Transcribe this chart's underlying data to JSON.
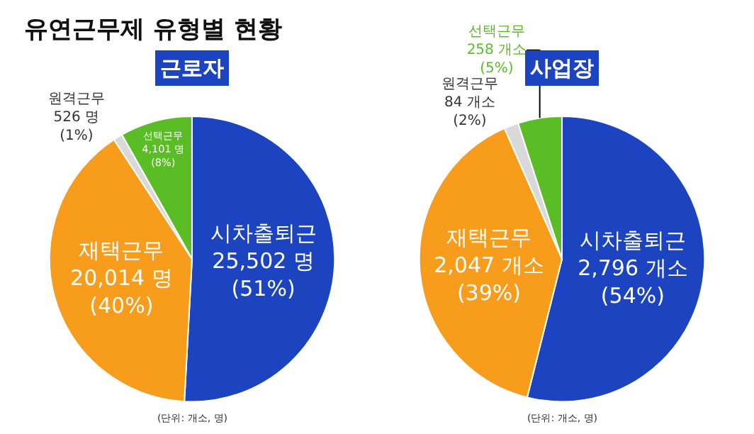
{
  "chart_data": [
    {
      "type": "other",
      "title": "유연근무제 유형별 현황"
    },
    {
      "type": "pie",
      "title": "근로자",
      "categories": [
        "시차출퇴근",
        "재택근무",
        "원격근무",
        "선택근무"
      ],
      "values": [
        25502,
        20014,
        526,
        4101
      ],
      "colors": [
        "#1c43c0",
        "#f89c1c",
        "#d9d9d9",
        "#5bbd25"
      ],
      "value_labels": [
        "25,502 명\n(51%)",
        "20,014 명\n(40%)",
        "526 명\n(1%)",
        "4,101 명\n(8%)"
      ],
      "annotations": [
        "(단위: 개소, 명)"
      ]
    },
    {
      "type": "pie",
      "title": "사업장",
      "categories": [
        "시차출퇴근",
        "재택근무",
        "원격근무",
        "선택근무"
      ],
      "values": [
        2796,
        2047,
        84,
        258
      ],
      "colors": [
        "#1c43c0",
        "#f89c1c",
        "#d9d9d9",
        "#5bbd25"
      ],
      "value_labels": [
        "2,796 개소\n(54%)",
        "2,047 개소\n(39%)",
        "84 개소\n(2%)",
        "258 개소\n(5%)"
      ],
      "annotations": [
        "(단위: 개소, 명)"
      ]
    }
  ]
}
